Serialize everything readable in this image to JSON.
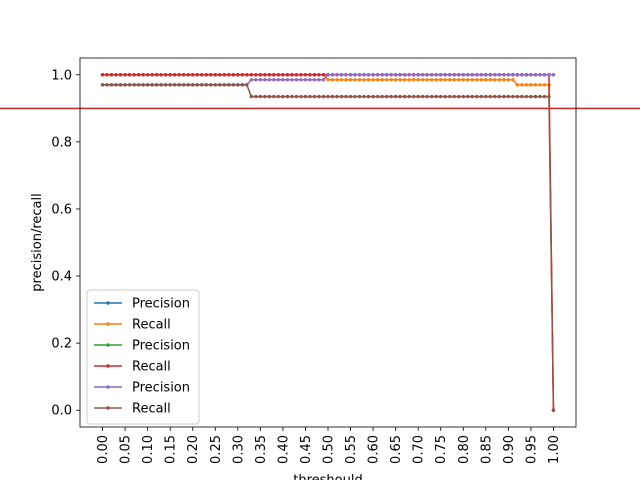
{
  "chart_data": {
    "type": "line",
    "xlabel": "threshould",
    "ylabel": "precision/recall",
    "xlim": [
      -0.05,
      1.05
    ],
    "ylim": [
      -0.05,
      1.05
    ],
    "x_ticks": [
      "0.00",
      "0.05",
      "0.10",
      "0.15",
      "0.20",
      "0.25",
      "0.30",
      "0.35",
      "0.40",
      "0.45",
      "0.50",
      "0.55",
      "0.60",
      "0.65",
      "0.70",
      "0.75",
      "0.80",
      "0.85",
      "0.90",
      "0.95",
      "1.00"
    ],
    "y_ticks": [
      "0.0",
      "0.2",
      "0.4",
      "0.6",
      "0.8",
      "1.0"
    ],
    "hline": {
      "y": 0.9,
      "color": "#d62728"
    },
    "legend_position": "lower-left",
    "x_step": 0.01,
    "series": [
      {
        "name": "Precision",
        "color": "#1f77b4",
        "segments": [
          {
            "from": 0.0,
            "to": 0.99,
            "y": 1.0
          },
          {
            "from": 1.0,
            "to": 1.0,
            "y": 1.0
          }
        ]
      },
      {
        "name": "Recall",
        "color": "#ff7f0e",
        "segments": [
          {
            "from": 0.0,
            "to": 0.49,
            "y": 1.0
          },
          {
            "from": 0.5,
            "to": 0.91,
            "y": 0.985
          },
          {
            "from": 0.92,
            "to": 0.99,
            "y": 0.97
          },
          {
            "from": 1.0,
            "to": 1.0,
            "y": 0.0
          }
        ]
      },
      {
        "name": "Precision",
        "color": "#2ca02c",
        "segments": [
          {
            "from": 0.0,
            "to": 0.99,
            "y": 1.0
          },
          {
            "from": 1.0,
            "to": 1.0,
            "y": 1.0
          }
        ]
      },
      {
        "name": "Recall",
        "color": "#d62728",
        "segments": [
          {
            "from": 0.0,
            "to": 0.49,
            "y": 1.0
          },
          {
            "from": 0.5,
            "to": 0.99,
            "y": 1.0
          },
          {
            "from": 1.0,
            "to": 1.0,
            "y": 0.0
          }
        ]
      },
      {
        "name": "Precision",
        "color": "#9467bd",
        "segments": [
          {
            "from": 0.0,
            "to": 0.32,
            "y": 0.97
          },
          {
            "from": 0.33,
            "to": 0.49,
            "y": 0.985
          },
          {
            "from": 0.5,
            "to": 1.0,
            "y": 1.0
          }
        ]
      },
      {
        "name": "Recall",
        "color": "#8c564b",
        "segments": [
          {
            "from": 0.0,
            "to": 0.32,
            "y": 0.97
          },
          {
            "from": 0.33,
            "to": 0.99,
            "y": 0.935
          },
          {
            "from": 1.0,
            "to": 1.0,
            "y": 0.0
          }
        ]
      }
    ]
  }
}
